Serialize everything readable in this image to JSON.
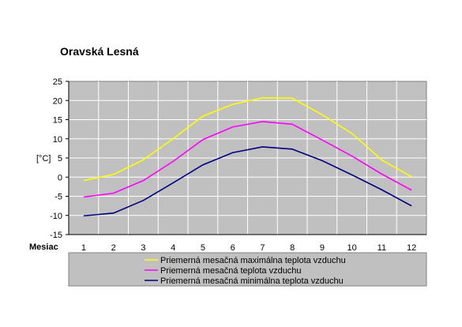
{
  "colors": {
    "plot_bg": "#c0c0c0",
    "grid": "#ffffff",
    "legend_bg": "#c0c0c0"
  },
  "chart_data": {
    "type": "line",
    "title": "Oravská Lesná",
    "xlabel": "Mesiac",
    "ylabel": "[°C]",
    "x": [
      1,
      2,
      3,
      4,
      5,
      6,
      7,
      8,
      9,
      10,
      11,
      12
    ],
    "ylim": [
      -15,
      25
    ],
    "yticks": [
      -15,
      -10,
      -5,
      0,
      5,
      10,
      15,
      20,
      25
    ],
    "grid": true,
    "legend_position": "bottom",
    "series": [
      {
        "name": "Priemerná mesačná maximálna teplota vzduchu",
        "color": "#ffff00",
        "values": [
          -0.9,
          0.7,
          4.5,
          10.0,
          15.9,
          19.0,
          20.7,
          20.6,
          16.3,
          11.4,
          4.5,
          0.1
        ]
      },
      {
        "name": "Priemerná mesačná teplota vzduchu",
        "color": "#ff00ff",
        "values": [
          -5.2,
          -4.2,
          -0.9,
          4.1,
          9.8,
          13.1,
          14.5,
          13.8,
          9.7,
          5.5,
          0.8,
          -3.4
        ]
      },
      {
        "name": "Priemerná mesačná minimálna teplota vzduchu",
        "color": "#000080",
        "values": [
          -10.1,
          -9.4,
          -6.1,
          -1.5,
          3.2,
          6.4,
          7.9,
          7.3,
          4.3,
          0.6,
          -3.3,
          -7.5
        ]
      }
    ]
  }
}
